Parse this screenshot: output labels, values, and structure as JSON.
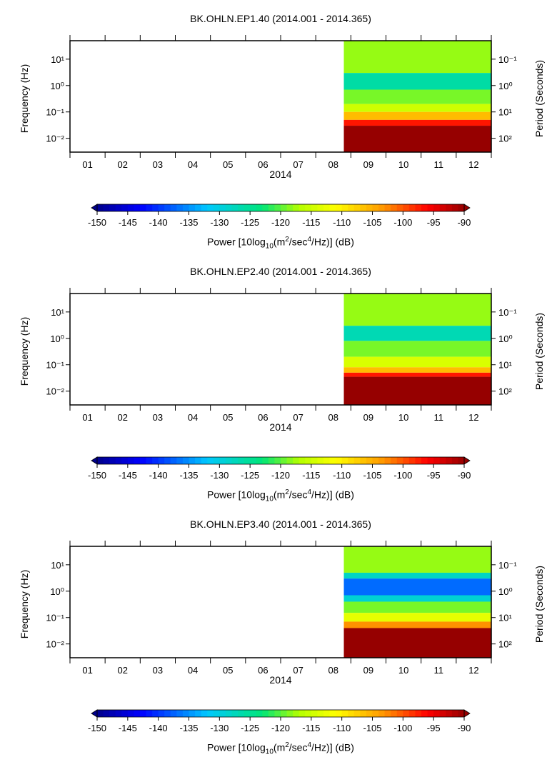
{
  "chart_data": [
    {
      "type": "heatmap",
      "title": "BK.OHLN.EP1.40 (2014.001 - 2014.365)",
      "xlabel": "2014",
      "ylabel": "Frequency (Hz)",
      "y2label": "Period (Seconds)",
      "x_ticks": [
        "01",
        "02",
        "03",
        "04",
        "05",
        "06",
        "07",
        "08",
        "09",
        "10",
        "11",
        "12"
      ],
      "y_ticks": [
        "10¹",
        "10⁰",
        "10⁻¹",
        "10⁻²"
      ],
      "y_tick_values": [
        10,
        1,
        0.1,
        0.01
      ],
      "y2_ticks": [
        "10⁻¹",
        "10⁰",
        "10¹",
        "10²"
      ],
      "y2_tick_values": [
        0.1,
        1,
        10,
        100
      ],
      "ylim": [
        0.003,
        50
      ],
      "ylog": true,
      "data_start_month": 7.8,
      "bands": [
        {
          "fmin": 3.0,
          "fmax": 50,
          "power": -118
        },
        {
          "fmin": 0.7,
          "fmax": 3.0,
          "power": -126
        },
        {
          "fmin": 0.2,
          "fmax": 0.7,
          "power": -119
        },
        {
          "fmin": 0.1,
          "fmax": 0.2,
          "power": -115
        },
        {
          "fmin": 0.05,
          "fmax": 0.1,
          "power": -106
        },
        {
          "fmin": 0.03,
          "fmax": 0.05,
          "power": -97
        },
        {
          "fmin": 0.003,
          "fmax": 0.03,
          "power": -90
        }
      ],
      "colorbar": {
        "label_parts": [
          "Power [10log",
          "10",
          "(m",
          "2",
          "/sec",
          "4",
          "/Hz)] (dB)"
        ],
        "ticks": [
          "-150",
          "-145",
          "-140",
          "-135",
          "-130",
          "-125",
          "-120",
          "-115",
          "-110",
          "-105",
          "-100",
          "-95",
          "-90"
        ],
        "range": [
          -150,
          -90
        ]
      }
    },
    {
      "type": "heatmap",
      "title": "BK.OHLN.EP2.40 (2014.001 - 2014.365)",
      "xlabel": "2014",
      "ylabel": "Frequency (Hz)",
      "y2label": "Period (Seconds)",
      "x_ticks": [
        "01",
        "02",
        "03",
        "04",
        "05",
        "06",
        "07",
        "08",
        "09",
        "10",
        "11",
        "12"
      ],
      "y_ticks": [
        "10¹",
        "10⁰",
        "10⁻¹",
        "10⁻²"
      ],
      "y_tick_values": [
        10,
        1,
        0.1,
        0.01
      ],
      "y2_ticks": [
        "10⁻¹",
        "10⁰",
        "10¹",
        "10²"
      ],
      "y2_tick_values": [
        0.1,
        1,
        10,
        100
      ],
      "ylim": [
        0.003,
        50
      ],
      "ylog": true,
      "data_start_month": 7.8,
      "bands": [
        {
          "fmin": 3.0,
          "fmax": 50,
          "power": -118
        },
        {
          "fmin": 0.8,
          "fmax": 3.0,
          "power": -127
        },
        {
          "fmin": 0.2,
          "fmax": 0.8,
          "power": -119
        },
        {
          "fmin": 0.08,
          "fmax": 0.2,
          "power": -114
        },
        {
          "fmin": 0.05,
          "fmax": 0.08,
          "power": -106
        },
        {
          "fmin": 0.035,
          "fmax": 0.05,
          "power": -97
        },
        {
          "fmin": 0.003,
          "fmax": 0.035,
          "power": -90
        }
      ],
      "colorbar": {
        "label_parts": [
          "Power [10log",
          "10",
          "(m",
          "2",
          "/sec",
          "4",
          "/Hz)] (dB)"
        ],
        "ticks": [
          "-150",
          "-145",
          "-140",
          "-135",
          "-130",
          "-125",
          "-120",
          "-115",
          "-110",
          "-105",
          "-100",
          "-95",
          "-90"
        ],
        "range": [
          -150,
          -90
        ]
      }
    },
    {
      "type": "heatmap",
      "title": "BK.OHLN.EP3.40 (2014.001 - 2014.365)",
      "xlabel": "2014",
      "ylabel": "Frequency (Hz)",
      "y2label": "Period (Seconds)",
      "x_ticks": [
        "01",
        "02",
        "03",
        "04",
        "05",
        "06",
        "07",
        "08",
        "09",
        "10",
        "11",
        "12"
      ],
      "y_ticks": [
        "10¹",
        "10⁰",
        "10⁻¹",
        "10⁻²"
      ],
      "y_tick_values": [
        10,
        1,
        0.1,
        0.01
      ],
      "y2_ticks": [
        "10⁻¹",
        "10⁰",
        "10¹",
        "10²"
      ],
      "y2_tick_values": [
        0.1,
        1,
        10,
        100
      ],
      "ylim": [
        0.003,
        50
      ],
      "ylog": true,
      "data_start_month": 7.8,
      "bands": [
        {
          "fmin": 5.0,
          "fmax": 50,
          "power": -118
        },
        {
          "fmin": 3.0,
          "fmax": 5.0,
          "power": -128
        },
        {
          "fmin": 0.7,
          "fmax": 3.0,
          "power": -137
        },
        {
          "fmin": 0.4,
          "fmax": 0.7,
          "power": -129
        },
        {
          "fmin": 0.15,
          "fmax": 0.4,
          "power": -119
        },
        {
          "fmin": 0.07,
          "fmax": 0.15,
          "power": -113
        },
        {
          "fmin": 0.04,
          "fmax": 0.07,
          "power": -103
        },
        {
          "fmin": 0.003,
          "fmax": 0.04,
          "power": -90
        }
      ],
      "colorbar": {
        "label_parts": [
          "Power [10log",
          "10",
          "(m",
          "2",
          "/sec",
          "4",
          "/Hz)] (dB)"
        ],
        "ticks": [
          "-150",
          "-145",
          "-140",
          "-135",
          "-130",
          "-125",
          "-120",
          "-115",
          "-110",
          "-105",
          "-100",
          "-95",
          "-90"
        ],
        "range": [
          -150,
          -90
        ]
      }
    }
  ]
}
